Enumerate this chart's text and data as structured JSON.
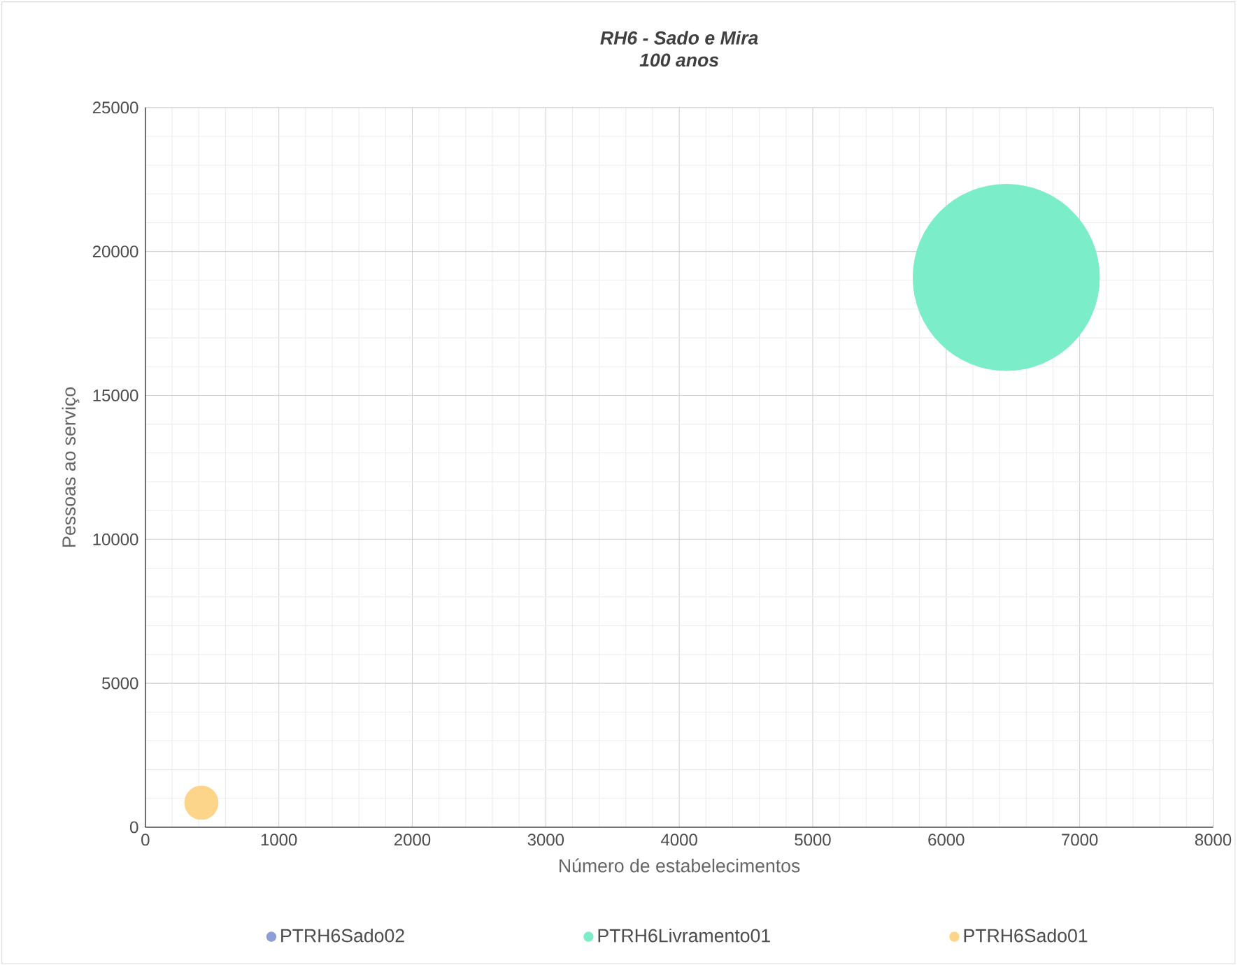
{
  "chart_data": {
    "type": "bubble",
    "title": "RH6 - Sado e Mira",
    "subtitle": "100 anos",
    "xlabel": "Número de estabelecimentos",
    "ylabel": "Pessoas ao serviço",
    "series": [
      {
        "name": "PTRH6Sado02",
        "color": "#8e9ed6",
        "x": [
          null
        ],
        "values": [
          null
        ],
        "sizes": [
          null
        ]
      },
      {
        "name": "PTRH6Livramento01",
        "color": "#7beec9",
        "x": [
          6450
        ],
        "values": [
          19100
        ],
        "sizes": [
          1
        ]
      },
      {
        "name": "PTRH6Sado01",
        "color": "#fdd58a",
        "x": [
          420
        ],
        "values": [
          850
        ],
        "sizes": [
          0.032
        ]
      }
    ],
    "xlim": [
      0,
      8000
    ],
    "xticks": [
      0,
      1000,
      2000,
      3000,
      4000,
      5000,
      6000,
      7000,
      8000
    ],
    "ylim": [
      0,
      25000
    ],
    "yticks": [
      0,
      5000,
      10000,
      15000,
      20000,
      25000
    ],
    "grid": true,
    "legend": "bottom"
  }
}
